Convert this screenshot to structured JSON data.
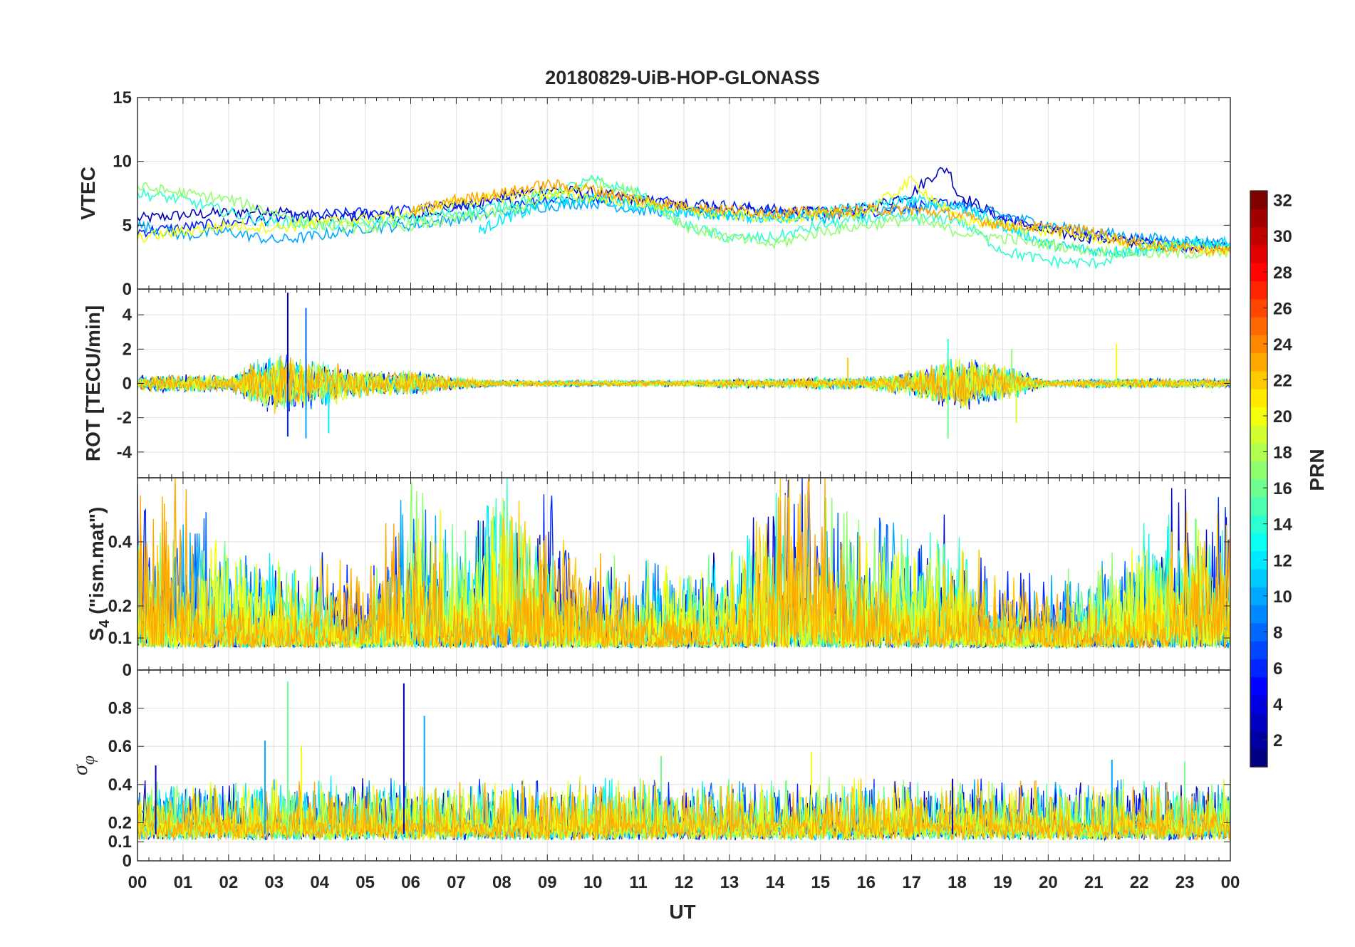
{
  "chart_data": {
    "type": "line",
    "title": "20180829-UiB-HOP-GLONASS",
    "xlabel": "UT",
    "x_ticks": [
      "00",
      "01",
      "02",
      "03",
      "04",
      "05",
      "06",
      "07",
      "08",
      "09",
      "10",
      "11",
      "12",
      "13",
      "14",
      "15",
      "16",
      "17",
      "18",
      "19",
      "20",
      "21",
      "22",
      "23",
      "00"
    ],
    "xlim": [
      0,
      24
    ],
    "colormap": "jet",
    "colorbar": {
      "label": "PRN",
      "range": [
        1,
        32
      ],
      "ticks": [
        "2",
        "4",
        "6",
        "8",
        "10",
        "12",
        "14",
        "16",
        "18",
        "20",
        "22",
        "24",
        "26",
        "28",
        "30",
        "32"
      ],
      "tick_values": [
        2,
        4,
        6,
        8,
        10,
        12,
        14,
        16,
        18,
        20,
        22,
        24,
        26,
        28,
        30,
        32
      ]
    },
    "panels": [
      {
        "id": "vtec",
        "ylabel": "VTEC",
        "ylim": [
          0,
          15
        ],
        "yticks": [
          0,
          5,
          10,
          15
        ],
        "ytick_labels": [
          "0",
          "5",
          "10",
          "15"
        ],
        "grid": true,
        "series": [
          {
            "prn": 3,
            "x": [
              0,
              1,
              2,
              3,
              4,
              5,
              6,
              7,
              8,
              9,
              10,
              11,
              12,
              13,
              14,
              15,
              16,
              17,
              17.5,
              17.8,
              18,
              19,
              20,
              21,
              22,
              23,
              24
            ],
            "y": [
              5.5,
              5.8,
              6,
              6.2,
              5.5,
              5.8,
              5.5,
              6.5,
              7.2,
              7.8,
              7.5,
              7,
              6.5,
              6.2,
              6,
              6,
              6.3,
              7.5,
              9,
              9.5,
              7.5,
              5.5,
              4.5,
              4,
              3.6,
              3.4,
              3.2
            ]
          },
          {
            "prn": 6,
            "x": [
              0,
              1,
              2,
              3,
              4,
              5,
              6,
              7,
              8,
              9,
              10,
              11,
              12,
              13,
              14,
              15,
              16,
              17,
              18,
              19,
              20,
              21,
              22,
              23,
              24
            ],
            "y": [
              4.5,
              4.8,
              5.2,
              5.5,
              5.8,
              6,
              6.2,
              6.5,
              6.8,
              7,
              7.2,
              7,
              6.8,
              6.5,
              6.2,
              6,
              6,
              6.5,
              6.8,
              5.5,
              4.8,
              4.2,
              3.8,
              3.5,
              3.5
            ]
          },
          {
            "prn": 10,
            "x": [
              0,
              1,
              2,
              3,
              4,
              5,
              6,
              7,
              8,
              9,
              10,
              11,
              12,
              13,
              14,
              15,
              16,
              17,
              18,
              19,
              20,
              21,
              22,
              23,
              24
            ],
            "y": [
              5,
              4.2,
              4.5,
              3.8,
              4.2,
              4.8,
              5,
              5.5,
              6,
              6.5,
              6.8,
              6.2,
              6,
              5.8,
              5.8,
              5.6,
              6,
              6.2,
              6.5,
              5.8,
              5,
              4.5,
              4,
              3.8,
              3.6
            ]
          },
          {
            "prn": 12,
            "x": [
              7.5,
              8,
              8.5,
              9,
              10,
              11,
              12,
              13,
              14,
              15,
              16,
              17,
              18,
              19,
              20,
              21,
              22,
              23,
              24
            ],
            "y": [
              4.5,
              5.5,
              6,
              6.8,
              7.2,
              6.5,
              6,
              5.8,
              5.5,
              6,
              6.5,
              7,
              6.5,
              5,
              3.5,
              3,
              3,
              3.5,
              3.6
            ]
          },
          {
            "prn": 14,
            "x": [
              0,
              1,
              2,
              3,
              4,
              5,
              6,
              7,
              8,
              9,
              10,
              11,
              12,
              13,
              14,
              15,
              16,
              17,
              18,
              19,
              20,
              21,
              22,
              23,
              24
            ],
            "y": [
              7.5,
              7,
              6,
              5.2,
              5,
              5.2,
              5.5,
              6,
              6.5,
              7.5,
              8.5,
              7.5,
              5,
              4,
              4,
              5,
              5.5,
              5.5,
              5.5,
              3,
              2.2,
              2,
              3,
              3.5,
              3.5
            ]
          },
          {
            "prn": 17,
            "x": [
              0,
              1,
              2,
              3,
              4,
              5,
              6,
              7,
              8,
              9,
              10,
              11,
              12,
              13,
              14,
              15,
              16,
              17,
              18,
              19,
              20,
              21,
              22,
              23,
              24
            ],
            "y": [
              8,
              7.5,
              7,
              6,
              5,
              4.8,
              5,
              5.5,
              6,
              7,
              8.5,
              7.5,
              5,
              4,
              3.5,
              4.5,
              5,
              5.5,
              4.5,
              4,
              3.5,
              3,
              2.8,
              2.8,
              2.8
            ]
          },
          {
            "prn": 20,
            "x": [
              0,
              1,
              2,
              3,
              4,
              5,
              6,
              7,
              8,
              9,
              10,
              11,
              12,
              13,
              14,
              15,
              16,
              17,
              18,
              19,
              20,
              21,
              22,
              23,
              24
            ],
            "y": [
              4,
              4.5,
              5,
              4.8,
              5.2,
              5.5,
              6,
              6.8,
              7.2,
              7.5,
              7.2,
              6.8,
              6.2,
              5.8,
              5.6,
              5.8,
              6,
              8.5,
              5.5,
              5,
              4.5,
              4,
              3.5,
              3.2,
              3
            ]
          },
          {
            "prn": 23,
            "x": [
              6,
              7,
              8,
              9,
              10,
              11,
              12,
              13,
              14,
              15,
              16,
              17,
              18,
              19,
              20,
              21,
              22,
              23,
              24
            ],
            "y": [
              6,
              7,
              7.5,
              8.2,
              7.8,
              7,
              6.5,
              6.2,
              6,
              6,
              6.2,
              6.2,
              5.8,
              5,
              4.8,
              4.5,
              3.5,
              3.2,
              3
            ]
          }
        ]
      },
      {
        "id": "rot",
        "ylabel": "ROT [TECU/min]",
        "ylim": [
          -5.5,
          5.5
        ],
        "yticks": [
          -4,
          -2,
          0,
          2,
          4
        ],
        "ytick_labels": [
          "-4",
          "-2",
          "0",
          "2",
          "4"
        ],
        "grid": true,
        "noise_envelope": {
          "x": [
            0,
            1,
            2,
            3,
            4,
            5,
            6,
            7,
            8,
            9,
            10,
            11,
            12,
            13,
            14,
            15,
            16,
            17,
            18,
            19,
            20,
            21,
            22,
            23,
            24
          ],
          "amp": [
            0.5,
            0.6,
            0.5,
            2,
            1.5,
            0.8,
            0.8,
            0.4,
            0.2,
            0.2,
            0.2,
            0.2,
            0.2,
            0.3,
            0.3,
            0.4,
            0.4,
            0.8,
            1.8,
            1.2,
            0.2,
            0.3,
            0.3,
            0.3,
            0.3
          ]
        },
        "spikes": [
          {
            "x": 3.3,
            "y": 5.3
          },
          {
            "x": 3.3,
            "y": -3.1
          },
          {
            "x": 3.7,
            "y": 4.4
          },
          {
            "x": 3.7,
            "y": -3.2
          },
          {
            "x": 4.2,
            "y": -2.9
          },
          {
            "x": 17.8,
            "y": 2.6
          },
          {
            "x": 17.8,
            "y": -3.2
          },
          {
            "x": 19.2,
            "y": 2
          },
          {
            "x": 19.3,
            "y": -2.3
          },
          {
            "x": 21.5,
            "y": 2.3
          },
          {
            "x": 15.6,
            "y": 1.5
          }
        ]
      },
      {
        "id": "s4",
        "ylabel": "S4 (\"ism.mat\")",
        "ylim": [
          0,
          0.6
        ],
        "yticks": [
          0,
          0.1,
          0.2,
          0.4
        ],
        "ytick_labels": [
          "0",
          "0.1",
          "0.2",
          "0.4"
        ],
        "grid": true,
        "baseline": 0.07,
        "activity": {
          "x": [
            0,
            1,
            2,
            3,
            4,
            5,
            6,
            7,
            8,
            9,
            10,
            11,
            12,
            13,
            14,
            15,
            16,
            17,
            18,
            19,
            20,
            21,
            22,
            23,
            24
          ],
          "peak": [
            0.55,
            0.5,
            0.4,
            0.3,
            0.35,
            0.3,
            0.55,
            0.4,
            0.55,
            0.55,
            0.35,
            0.3,
            0.3,
            0.35,
            0.6,
            0.6,
            0.45,
            0.4,
            0.4,
            0.3,
            0.3,
            0.3,
            0.4,
            0.5,
            0.6
          ]
        }
      },
      {
        "id": "sigma",
        "ylabel": "σφ",
        "ylim": [
          0,
          1
        ],
        "yticks": [
          0,
          0.1,
          0.2,
          0.4,
          0.6,
          0.8
        ],
        "ytick_labels": [
          "0",
          "0.1",
          "0.2",
          "0.4",
          "0.6",
          "0.8"
        ],
        "grid": true,
        "baseline": 0.14,
        "spikes": [
          {
            "x": 0.4,
            "y": 0.5
          },
          {
            "x": 2.8,
            "y": 0.63
          },
          {
            "x": 3.3,
            "y": 0.94
          },
          {
            "x": 3.6,
            "y": 0.6
          },
          {
            "x": 5.85,
            "y": 0.93
          },
          {
            "x": 6.3,
            "y": 0.76
          },
          {
            "x": 11.5,
            "y": 0.55
          },
          {
            "x": 14.8,
            "y": 0.57
          },
          {
            "x": 17.9,
            "y": 0.43
          },
          {
            "x": 21.4,
            "y": 0.53
          },
          {
            "x": 23.0,
            "y": 0.52
          }
        ]
      }
    ]
  }
}
